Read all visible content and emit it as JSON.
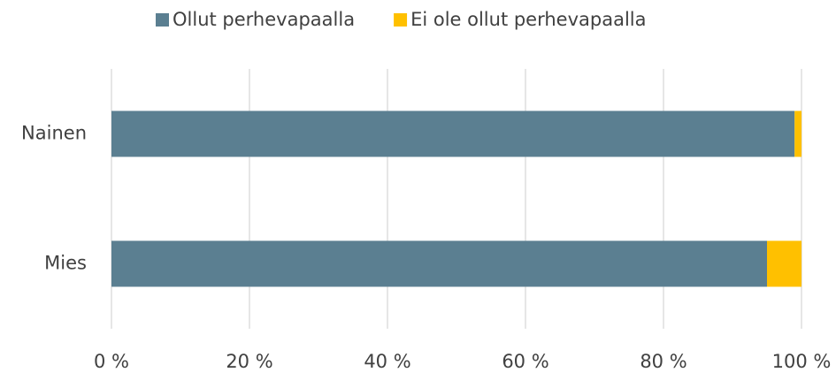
{
  "chart_data": {
    "type": "bar",
    "orientation": "horizontal",
    "stacked": true,
    "categories": [
      "Nainen",
      "Mies"
    ],
    "series": [
      {
        "name": "Ollut perhevapaalla",
        "color": "#5b7f91",
        "values": [
          99,
          95
        ]
      },
      {
        "name": "Ei ole ollut perhevapaalla",
        "color": "#ffc000",
        "values": [
          1,
          5
        ]
      }
    ],
    "xlim": [
      0,
      100
    ],
    "xticks": [
      {
        "value": 0,
        "label": "0 %"
      },
      {
        "value": 20,
        "label": "20 %"
      },
      {
        "value": 40,
        "label": "40 %"
      },
      {
        "value": 60,
        "label": "60 %"
      },
      {
        "value": 80,
        "label": "80 %"
      },
      {
        "value": 100,
        "label": "100 %"
      }
    ],
    "grid": true,
    "legend": "top"
  }
}
